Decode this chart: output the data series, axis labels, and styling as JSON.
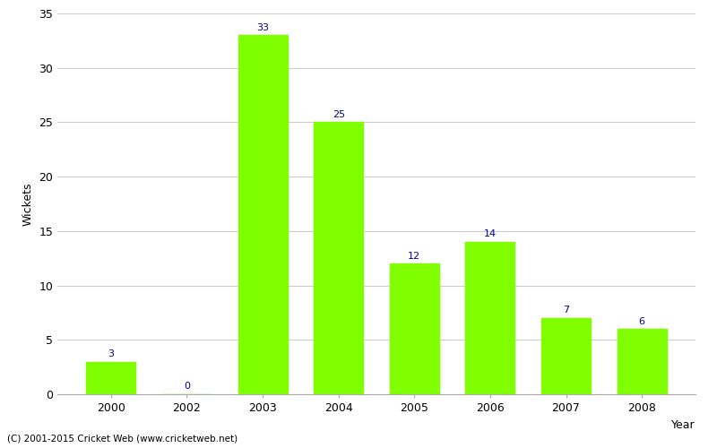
{
  "years": [
    "2000",
    "2002",
    "2003",
    "2004",
    "2005",
    "2006",
    "2007",
    "2008"
  ],
  "values": [
    3,
    0,
    33,
    25,
    12,
    14,
    7,
    6
  ],
  "bar_color": "#7fff00",
  "bar_edge_color": "#7fff00",
  "label_color": "#00008B",
  "xlabel": "Year",
  "ylabel": "Wickets",
  "ylim": [
    0,
    35
  ],
  "yticks": [
    0,
    5,
    10,
    15,
    20,
    25,
    30,
    35
  ],
  "background_color": "#ffffff",
  "grid_color": "#cccccc",
  "footer": "(C) 2001-2015 Cricket Web (www.cricketweb.net)",
  "label_fontsize": 8,
  "axis_fontsize": 9,
  "bar_width": 0.65
}
